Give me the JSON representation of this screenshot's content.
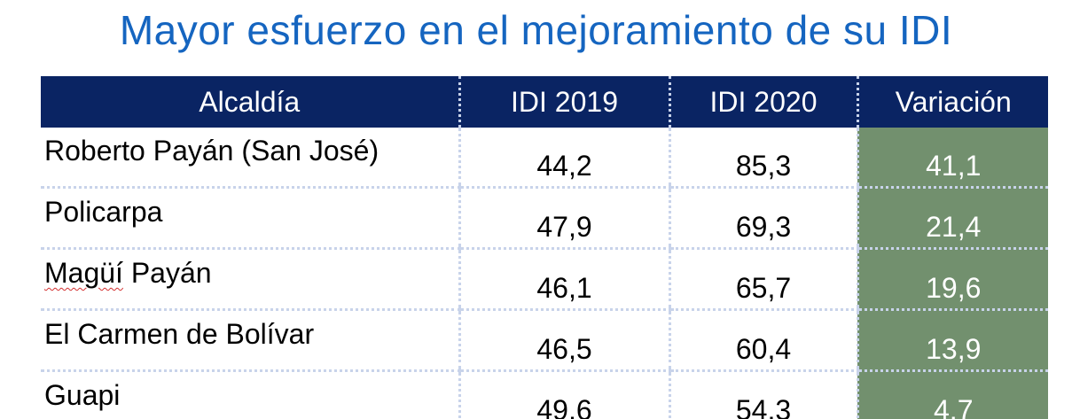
{
  "title": "Mayor esfuerzo en el mejoramiento de su IDI",
  "table": {
    "headers": [
      "Alcaldía",
      "IDI 2019",
      "IDI 2020",
      "Variación"
    ],
    "rows": [
      {
        "alcaldia": "Roberto Payán (San José)",
        "idi2019": "44,2",
        "idi2020": "85,3",
        "variacion": "41,1"
      },
      {
        "alcaldia_part1": "Magüí",
        "alcaldia_part2": " Payán"
      },
      {
        "alcaldia": "El Carmen de Bolívar",
        "idi2019": "46,5",
        "idi2020": "60,4",
        "variacion": "13,9"
      },
      {
        "alcaldia": "Guapi",
        "idi2019": "49,6",
        "idi2020": "54,3",
        "variacion": "4,7"
      }
    ],
    "row_policarpa": {
      "alcaldia": "Policarpa",
      "idi2019": "47,9",
      "idi2020": "69,3",
      "variacion": "21,4"
    },
    "row_magui": {
      "idi2019": "46,1",
      "idi2020": "65,7",
      "variacion": "19,6"
    }
  },
  "colors": {
    "title": "#1565c0",
    "header_bg": "#0a2463",
    "variation_bg": "#72906e",
    "grid_dotted": "#c8d3ea"
  }
}
